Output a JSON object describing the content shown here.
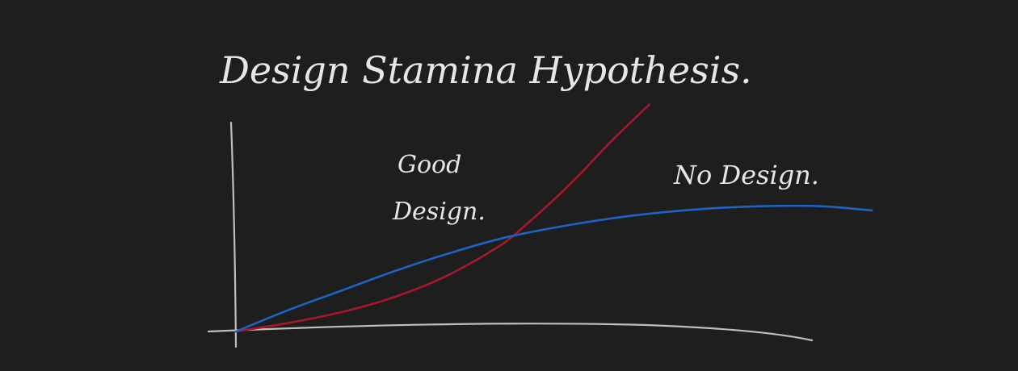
{
  "chart_data": {
    "type": "line",
    "title": "Design Stamina Hypothesis.",
    "xlabel": "",
    "ylabel": "",
    "series": [
      {
        "name": "Good Design.",
        "color": "#a8182c",
        "x": [
          0,
          0.1,
          0.2,
          0.3,
          0.4,
          0.5,
          0.55,
          0.6,
          0.65,
          0.7,
          0.75,
          0.78
        ],
        "y": [
          0,
          0.04,
          0.09,
          0.16,
          0.26,
          0.4,
          0.5,
          0.61,
          0.73,
          0.86,
          0.98,
          1.05
        ]
      },
      {
        "name": "No Design.",
        "color": "#1c63c4",
        "x": [
          0,
          0.1,
          0.2,
          0.3,
          0.4,
          0.5,
          0.6,
          0.7,
          0.8,
          0.9,
          1.0,
          1.1,
          1.2
        ],
        "y": [
          0,
          0.1,
          0.19,
          0.28,
          0.36,
          0.43,
          0.48,
          0.52,
          0.55,
          0.57,
          0.58,
          0.58,
          0.56
        ]
      }
    ]
  }
}
